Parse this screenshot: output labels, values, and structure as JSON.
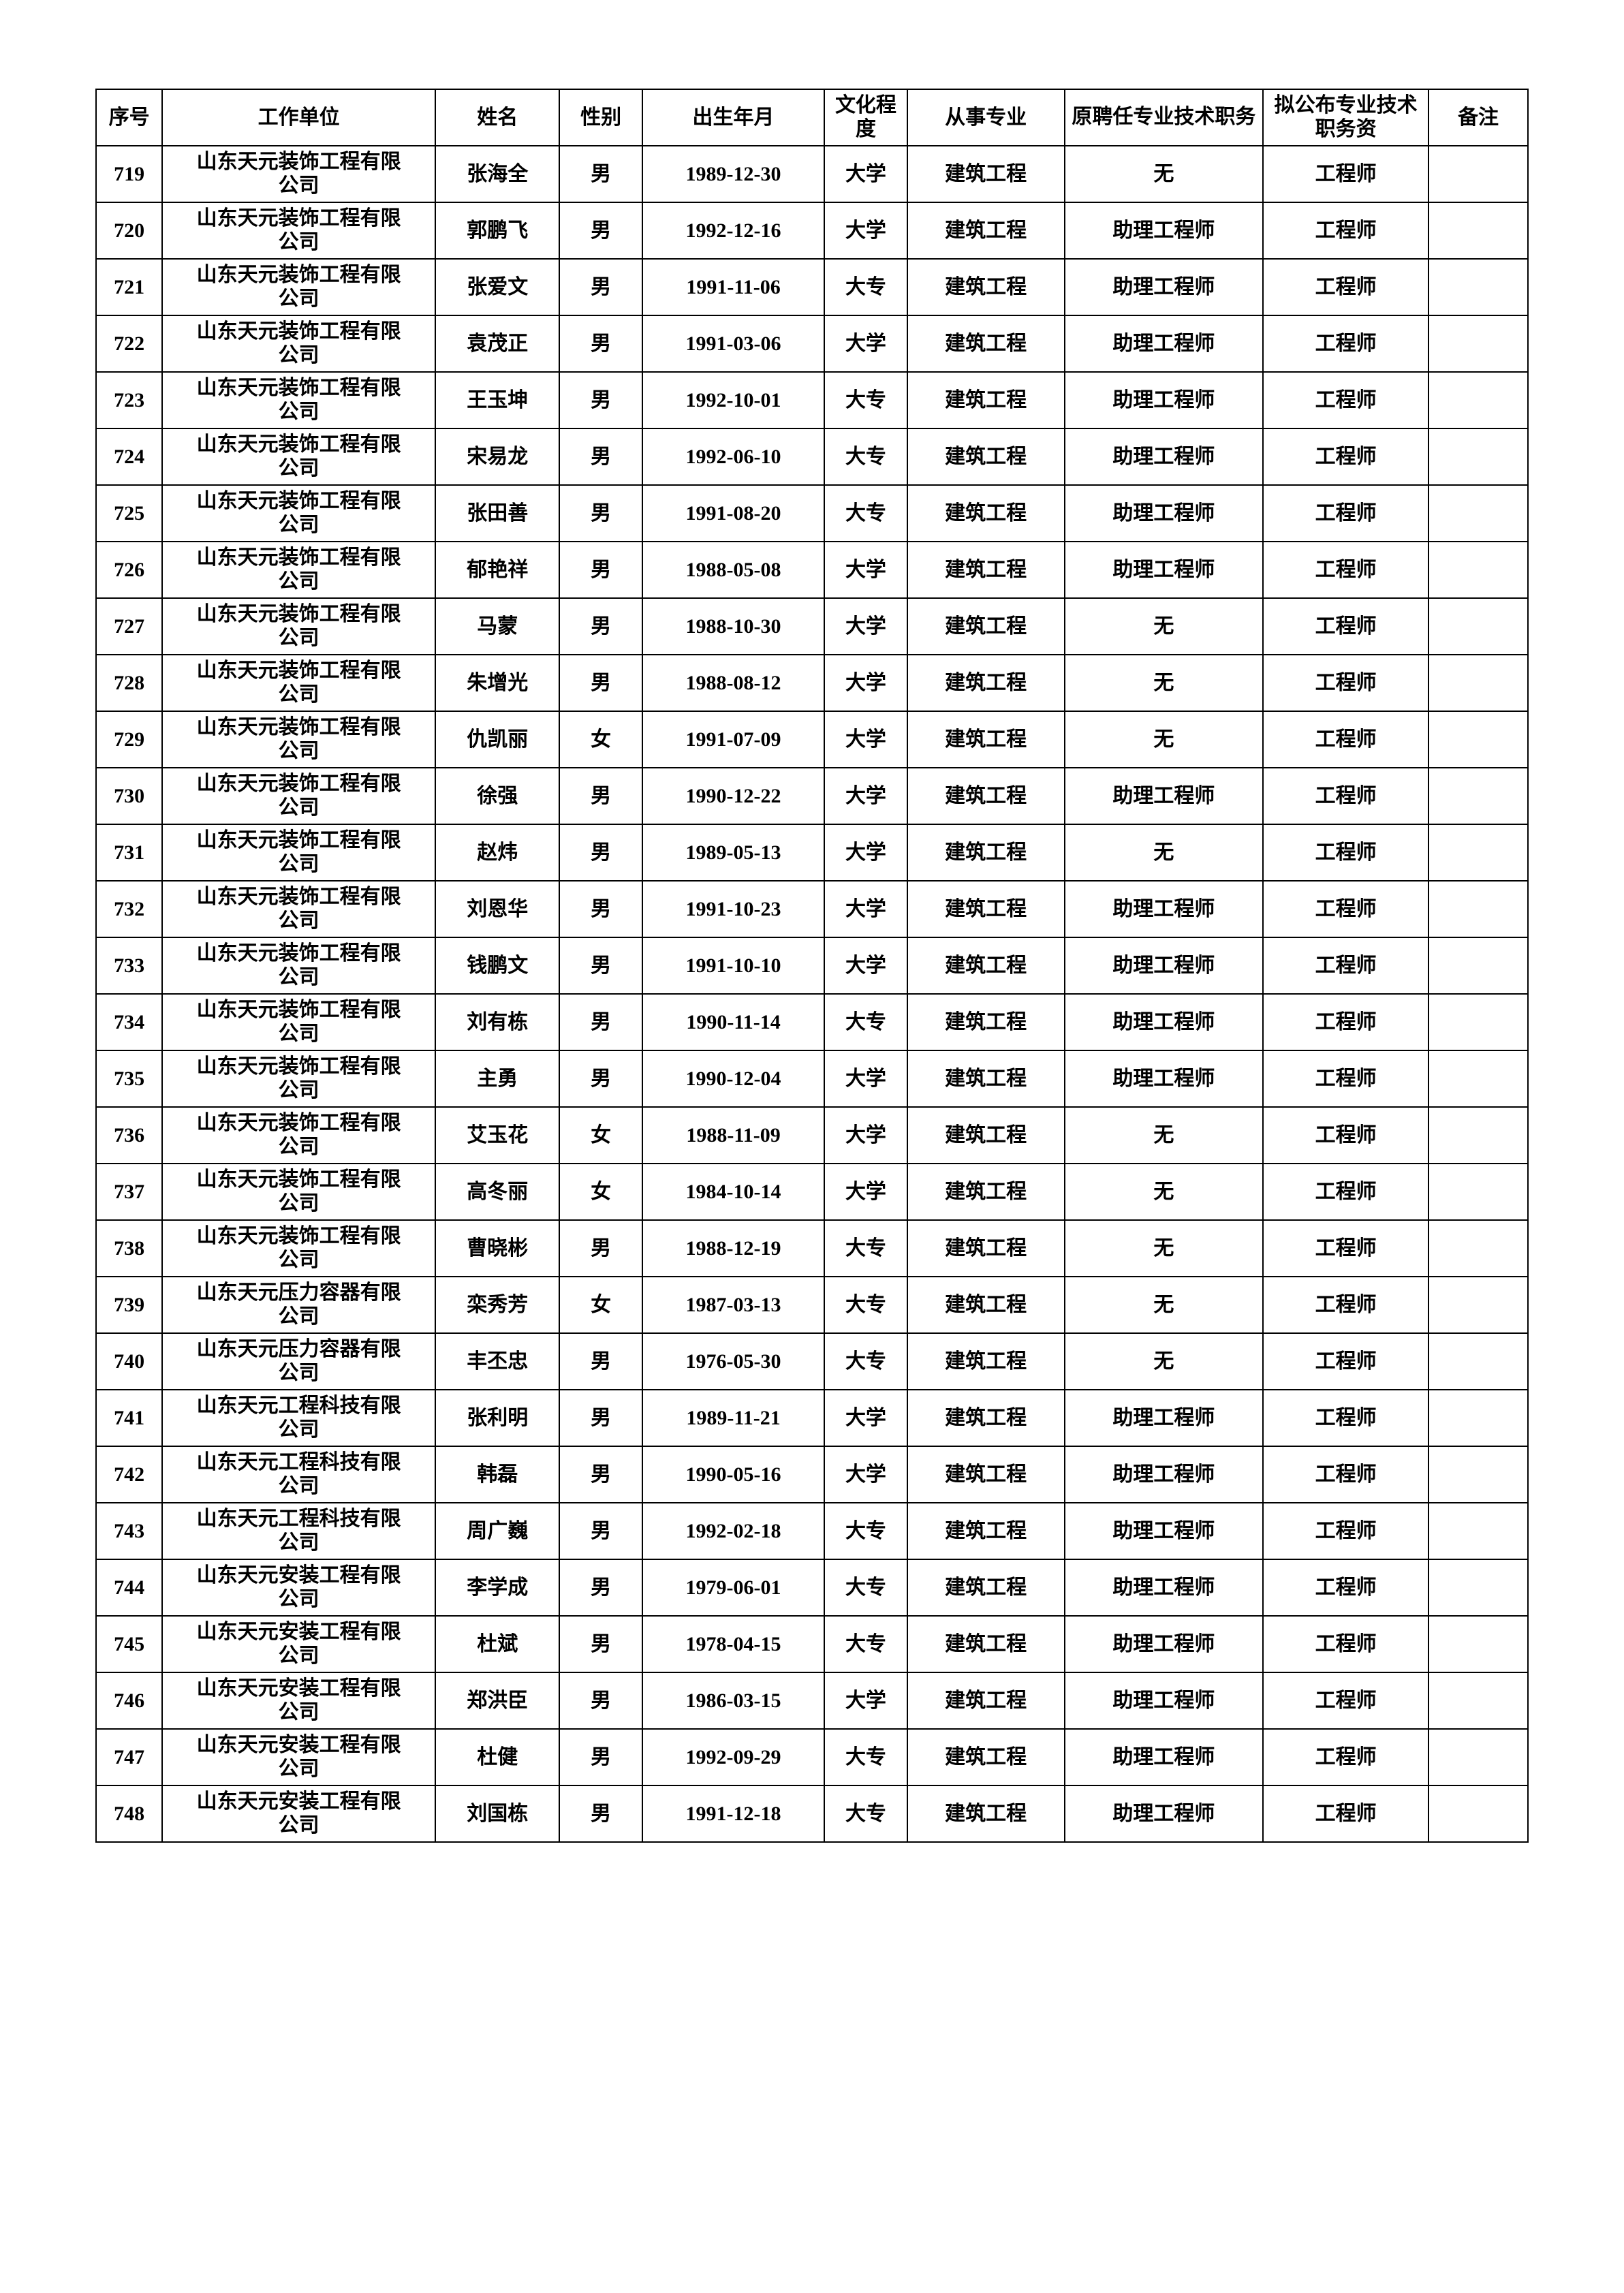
{
  "columns": [
    "序号",
    "工作单位",
    "姓名",
    "性别",
    "出生年月",
    "文化程度",
    "从事专业",
    "原聘任专业技术职务",
    "拟公布专业技术职务资",
    "备注"
  ],
  "rows": [
    [
      "719",
      "山东天元装饰工程有限公司",
      "张海全",
      "男",
      "1989-12-30",
      "大学",
      "建筑工程",
      "无",
      "工程师",
      ""
    ],
    [
      "720",
      "山东天元装饰工程有限公司",
      "郭鹏飞",
      "男",
      "1992-12-16",
      "大学",
      "建筑工程",
      "助理工程师",
      "工程师",
      ""
    ],
    [
      "721",
      "山东天元装饰工程有限公司",
      "张爱文",
      "男",
      "1991-11-06",
      "大专",
      "建筑工程",
      "助理工程师",
      "工程师",
      ""
    ],
    [
      "722",
      "山东天元装饰工程有限公司",
      "袁茂正",
      "男",
      "1991-03-06",
      "大学",
      "建筑工程",
      "助理工程师",
      "工程师",
      ""
    ],
    [
      "723",
      "山东天元装饰工程有限公司",
      "王玉坤",
      "男",
      "1992-10-01",
      "大专",
      "建筑工程",
      "助理工程师",
      "工程师",
      ""
    ],
    [
      "724",
      "山东天元装饰工程有限公司",
      "宋易龙",
      "男",
      "1992-06-10",
      "大专",
      "建筑工程",
      "助理工程师",
      "工程师",
      ""
    ],
    [
      "725",
      "山东天元装饰工程有限公司",
      "张田善",
      "男",
      "1991-08-20",
      "大专",
      "建筑工程",
      "助理工程师",
      "工程师",
      ""
    ],
    [
      "726",
      "山东天元装饰工程有限公司",
      "郁艳祥",
      "男",
      "1988-05-08",
      "大学",
      "建筑工程",
      "助理工程师",
      "工程师",
      ""
    ],
    [
      "727",
      "山东天元装饰工程有限公司",
      "马蒙",
      "男",
      "1988-10-30",
      "大学",
      "建筑工程",
      "无",
      "工程师",
      ""
    ],
    [
      "728",
      "山东天元装饰工程有限公司",
      "朱增光",
      "男",
      "1988-08-12",
      "大学",
      "建筑工程",
      "无",
      "工程师",
      ""
    ],
    [
      "729",
      "山东天元装饰工程有限公司",
      "仇凯丽",
      "女",
      "1991-07-09",
      "大学",
      "建筑工程",
      "无",
      "工程师",
      ""
    ],
    [
      "730",
      "山东天元装饰工程有限公司",
      "徐强",
      "男",
      "1990-12-22",
      "大学",
      "建筑工程",
      "助理工程师",
      "工程师",
      ""
    ],
    [
      "731",
      "山东天元装饰工程有限公司",
      "赵炜",
      "男",
      "1989-05-13",
      "大学",
      "建筑工程",
      "无",
      "工程师",
      ""
    ],
    [
      "732",
      "山东天元装饰工程有限公司",
      "刘恩华",
      "男",
      "1991-10-23",
      "大学",
      "建筑工程",
      "助理工程师",
      "工程师",
      ""
    ],
    [
      "733",
      "山东天元装饰工程有限公司",
      "钱鹏文",
      "男",
      "1991-10-10",
      "大学",
      "建筑工程",
      "助理工程师",
      "工程师",
      ""
    ],
    [
      "734",
      "山东天元装饰工程有限公司",
      "刘有栋",
      "男",
      "1990-11-14",
      "大专",
      "建筑工程",
      "助理工程师",
      "工程师",
      ""
    ],
    [
      "735",
      "山东天元装饰工程有限公司",
      "主勇",
      "男",
      "1990-12-04",
      "大学",
      "建筑工程",
      "助理工程师",
      "工程师",
      ""
    ],
    [
      "736",
      "山东天元装饰工程有限公司",
      "艾玉花",
      "女",
      "1988-11-09",
      "大学",
      "建筑工程",
      "无",
      "工程师",
      ""
    ],
    [
      "737",
      "山东天元装饰工程有限公司",
      "高冬丽",
      "女",
      "1984-10-14",
      "大学",
      "建筑工程",
      "无",
      "工程师",
      ""
    ],
    [
      "738",
      "山东天元装饰工程有限公司",
      "曹晓彬",
      "男",
      "1988-12-19",
      "大专",
      "建筑工程",
      "无",
      "工程师",
      ""
    ],
    [
      "739",
      "山东天元压力容器有限公司",
      "栾秀芳",
      "女",
      "1987-03-13",
      "大专",
      "建筑工程",
      "无",
      "工程师",
      ""
    ],
    [
      "740",
      "山东天元压力容器有限公司",
      "丰丕忠",
      "男",
      "1976-05-30",
      "大专",
      "建筑工程",
      "无",
      "工程师",
      ""
    ],
    [
      "741",
      "山东天元工程科技有限公司",
      "张利明",
      "男",
      "1989-11-21",
      "大学",
      "建筑工程",
      "助理工程师",
      "工程师",
      ""
    ],
    [
      "742",
      "山东天元工程科技有限公司",
      "韩磊",
      "男",
      "1990-05-16",
      "大学",
      "建筑工程",
      "助理工程师",
      "工程师",
      ""
    ],
    [
      "743",
      "山东天元工程科技有限公司",
      "周广巍",
      "男",
      "1992-02-18",
      "大专",
      "建筑工程",
      "助理工程师",
      "工程师",
      ""
    ],
    [
      "744",
      "山东天元安装工程有限公司",
      "李学成",
      "男",
      "1979-06-01",
      "大专",
      "建筑工程",
      "助理工程师",
      "工程师",
      ""
    ],
    [
      "745",
      "山东天元安装工程有限公司",
      "杜斌",
      "男",
      "1978-04-15",
      "大专",
      "建筑工程",
      "助理工程师",
      "工程师",
      ""
    ],
    [
      "746",
      "山东天元安装工程有限公司",
      "郑洪臣",
      "男",
      "1986-03-15",
      "大学",
      "建筑工程",
      "助理工程师",
      "工程师",
      ""
    ],
    [
      "747",
      "山东天元安装工程有限公司",
      "杜健",
      "男",
      "1992-09-29",
      "大专",
      "建筑工程",
      "助理工程师",
      "工程师",
      ""
    ],
    [
      "748",
      "山东天元安装工程有限公司",
      "刘国栋",
      "男",
      "1991-12-18",
      "大专",
      "建筑工程",
      "助理工程师",
      "工程师",
      ""
    ]
  ]
}
